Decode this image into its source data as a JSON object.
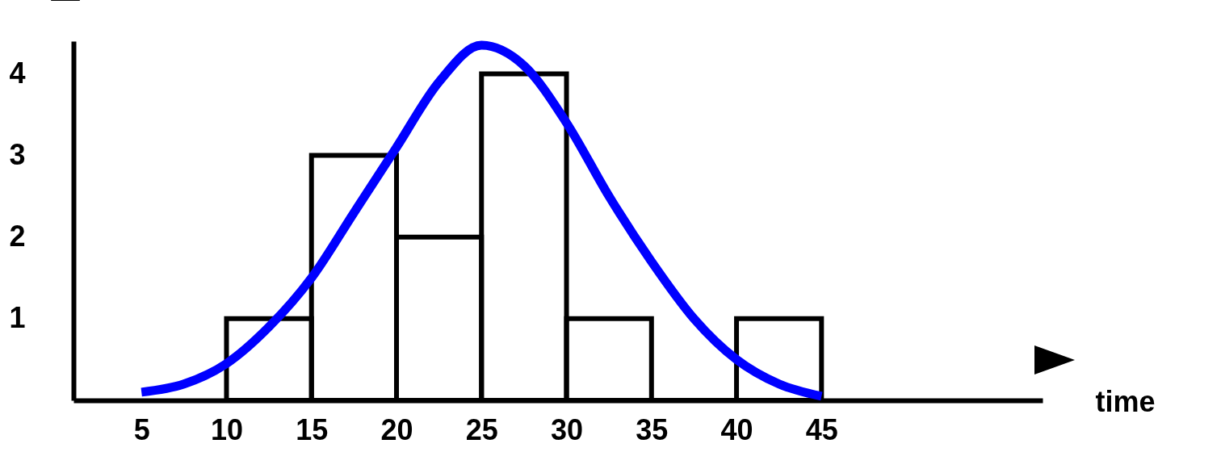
{
  "chart_data": {
    "type": "histogram",
    "xlabel": "time",
    "bins": [
      10,
      15,
      20,
      25,
      30,
      35,
      40,
      45
    ],
    "values": [
      1,
      3,
      2,
      4,
      1,
      0,
      1
    ],
    "color": "#000000",
    "series": [
      {
        "type": "line",
        "color": "#0000ff",
        "x": [
          5,
          7.5,
          10,
          12.5,
          15,
          17.5,
          20,
          22.5,
          25,
          27.5,
          30,
          32.5,
          35,
          37.5,
          40,
          42.5,
          45
        ],
        "values": [
          0.1,
          0.2,
          0.45,
          0.9,
          1.5,
          2.3,
          3.1,
          3.9,
          4.35,
          4.1,
          3.4,
          2.5,
          1.7,
          1.0,
          0.5,
          0.2,
          0.05
        ]
      }
    ],
    "xlim": [
      1,
      58
    ],
    "ylim": [
      0,
      4.4
    ],
    "xticks": [
      5,
      10,
      15,
      20,
      25,
      30,
      35,
      40,
      45
    ],
    "yticks": [
      1,
      2,
      3,
      4
    ],
    "grid": false
  }
}
